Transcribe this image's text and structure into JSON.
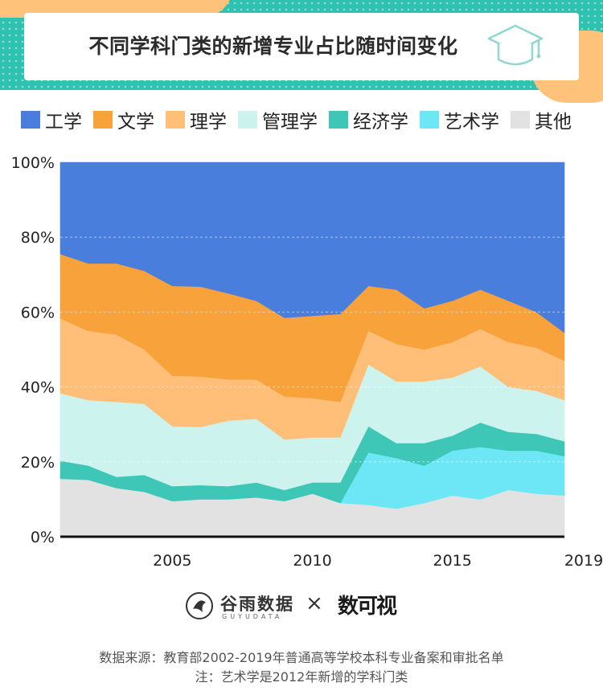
{
  "title": "不同学科门类的新增专业占比随时间变化",
  "colors": {
    "header_bg": "#2fc2b1",
    "accent_orange": "#ffc27a"
  },
  "chart_data": {
    "type": "area",
    "stacked": true,
    "normalized": true,
    "x": [
      2001,
      2002,
      2003,
      2004,
      2005,
      2006,
      2007,
      2008,
      2009,
      2010,
      2011,
      2012,
      2013,
      2014,
      2015,
      2016,
      2017,
      2018,
      2019
    ],
    "ylim": [
      0,
      100
    ],
    "yticks": [
      "0%",
      "20%",
      "40%",
      "60%",
      "80%",
      "100%"
    ],
    "xticks": [
      "2005",
      "2010",
      "2015",
      "2019"
    ],
    "grid": true,
    "legend_position": "top",
    "series": [
      {
        "name": "其他",
        "color": "#e2e2e2",
        "values": [
          15.5,
          15.2,
          13.0,
          12.0,
          9.5,
          10.0,
          10.0,
          10.5,
          9.5,
          11.5,
          9.0,
          8.5,
          7.5,
          9.0,
          11.0,
          10.0,
          12.5,
          11.5,
          11.0
        ]
      },
      {
        "name": "艺术学",
        "color": "#6de6f5",
        "values": [
          0,
          0,
          0,
          0,
          0,
          0,
          0,
          0,
          0,
          0,
          0,
          14.0,
          13.5,
          10.0,
          12.0,
          14.0,
          10.5,
          11.5,
          10.5
        ]
      },
      {
        "name": "经济学",
        "color": "#3ec7b6",
        "values": [
          4.8,
          3.8,
          3.0,
          4.5,
          4.0,
          3.8,
          3.5,
          4.0,
          3.0,
          3.0,
          5.5,
          7.0,
          4.0,
          6.0,
          4.0,
          6.5,
          5.0,
          4.5,
          4.0
        ]
      },
      {
        "name": "管理学",
        "color": "#ccf3ee",
        "values": [
          18.0,
          17.5,
          20.0,
          19.0,
          16.0,
          15.5,
          17.5,
          17.0,
          13.5,
          12.0,
          12.0,
          16.5,
          16.5,
          16.5,
          15.5,
          15.0,
          12.0,
          11.5,
          11.0
        ]
      },
      {
        "name": "理学",
        "color": "#ffbf78",
        "values": [
          20.0,
          18.5,
          18.0,
          14.5,
          13.5,
          13.5,
          11.0,
          10.5,
          11.5,
          10.5,
          9.5,
          9.0,
          10.0,
          8.5,
          9.5,
          10.0,
          12.0,
          11.5,
          10.5
        ]
      },
      {
        "name": "文学",
        "color": "#f7a23a",
        "values": [
          17.2,
          18.0,
          19.0,
          21.0,
          24.0,
          24.0,
          23.0,
          21.0,
          21.0,
          22.0,
          23.5,
          12.0,
          14.5,
          11.0,
          11.0,
          10.5,
          11.0,
          9.5,
          7.5
        ]
      },
      {
        "name": "工学",
        "color": "#4a7edd",
        "values": [
          24.5,
          27.0,
          27.0,
          29.0,
          33.0,
          33.2,
          35.0,
          37.0,
          41.5,
          41.0,
          40.5,
          33.0,
          34.0,
          39.0,
          37.0,
          34.0,
          37.0,
          40.0,
          45.5
        ]
      }
    ],
    "legend_order": [
      "工学",
      "文学",
      "理学",
      "管理学",
      "经济学",
      "艺术学",
      "其他"
    ]
  },
  "brand": {
    "name": "谷雨数据",
    "sub": "GUYUDATA",
    "separator": "×",
    "partner": "数可视"
  },
  "footer": {
    "source": "数据来源：教育部2002-2019年普通高等学校本科专业备案和审批名单",
    "note": "注：艺术学是2012年新增的学科门类"
  }
}
